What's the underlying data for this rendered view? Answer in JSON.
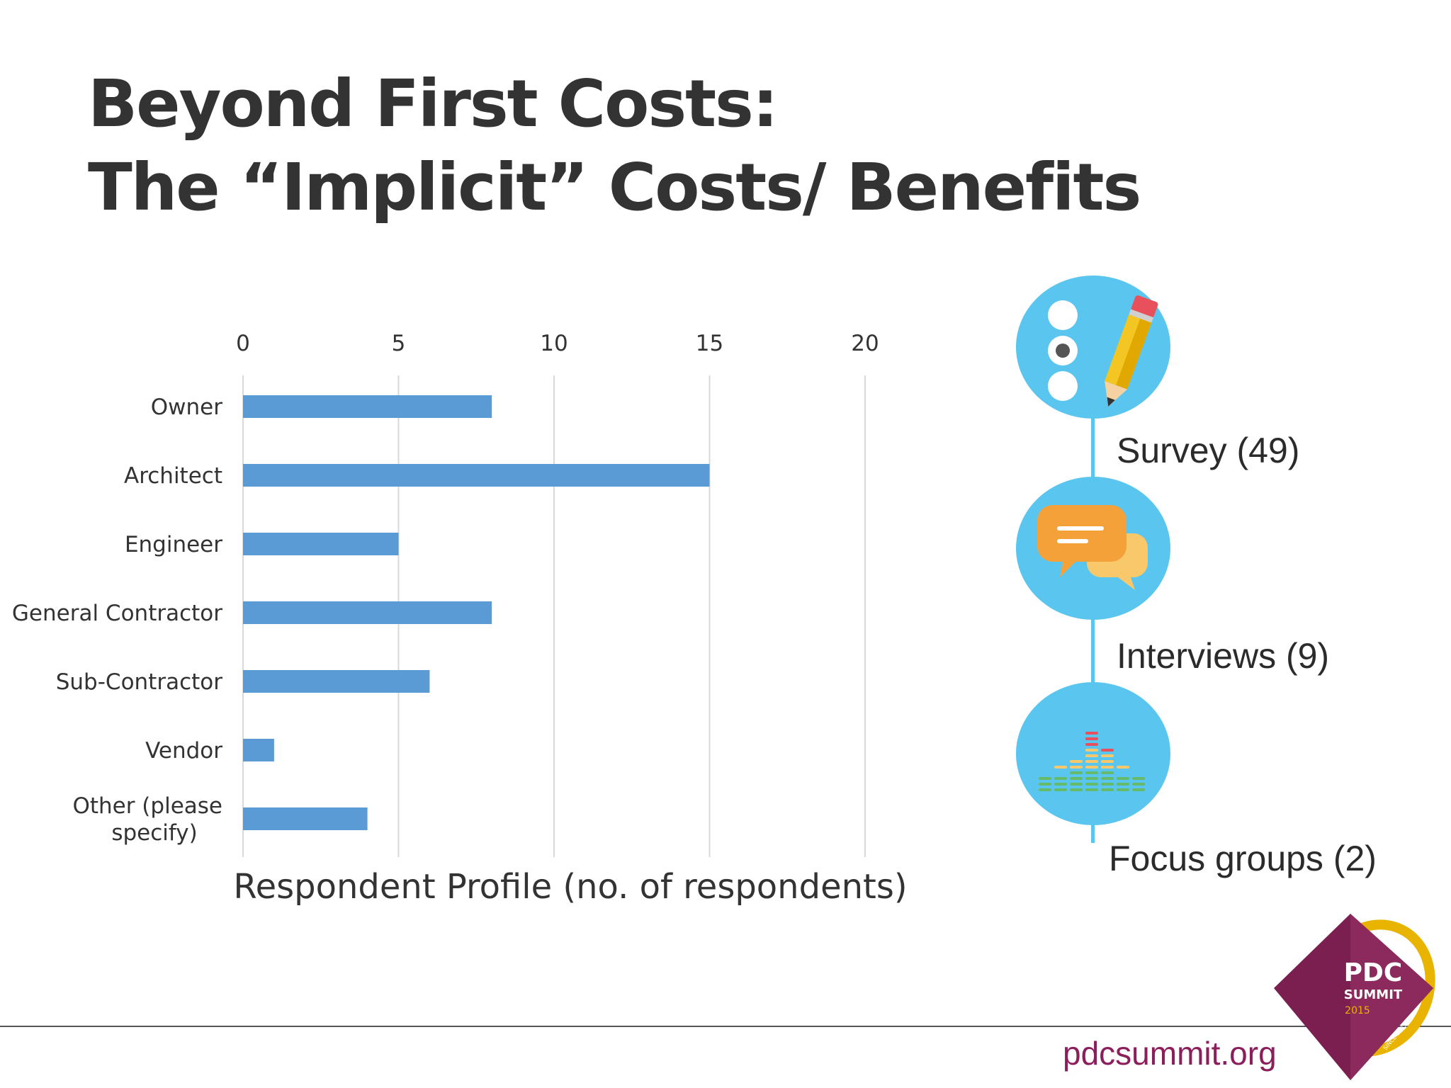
{
  "slide": {
    "title_line1": "Beyond First Costs:",
    "title_line2": "The “Implicit” Costs/ Benefits"
  },
  "chart_data": {
    "type": "bar",
    "orientation": "horizontal",
    "title": "Respondent Profile (no. of respondents)",
    "categories": [
      "Owner",
      "Architect",
      "Engineer",
      "General Contractor",
      "Sub-Contractor",
      "Vendor",
      "Other (please specify)"
    ],
    "category_lines": [
      [
        "Owner"
      ],
      [
        "Architect"
      ],
      [
        "Engineer"
      ],
      [
        "General Contractor"
      ],
      [
        "Sub-Contractor"
      ],
      [
        "Vendor"
      ],
      [
        "Other (please",
        "specify)"
      ]
    ],
    "values": [
      8,
      15,
      5,
      8,
      6,
      1,
      4
    ],
    "xlim": [
      0,
      20
    ],
    "xticks": [
      0,
      5,
      10,
      15,
      20
    ],
    "axis_position": "top",
    "grid": true,
    "bar_color": "#5b9bd5"
  },
  "methods": {
    "items": [
      {
        "label": "Survey (49)",
        "icon": "survey-pencil-icon"
      },
      {
        "label": "Interviews (9)",
        "icon": "chat-bubbles-icon"
      },
      {
        "label": "Focus groups (2)",
        "icon": "equalizer-icon"
      }
    ],
    "accent": "#5ac6ef"
  },
  "footer": {
    "site": "pdcsummit.org",
    "logo_text1": "PDC",
    "logo_text2": "SUMMIT",
    "logo_year": "2015",
    "logo_since": "SINCE 1985",
    "brand_color": "#8a1f5c"
  }
}
